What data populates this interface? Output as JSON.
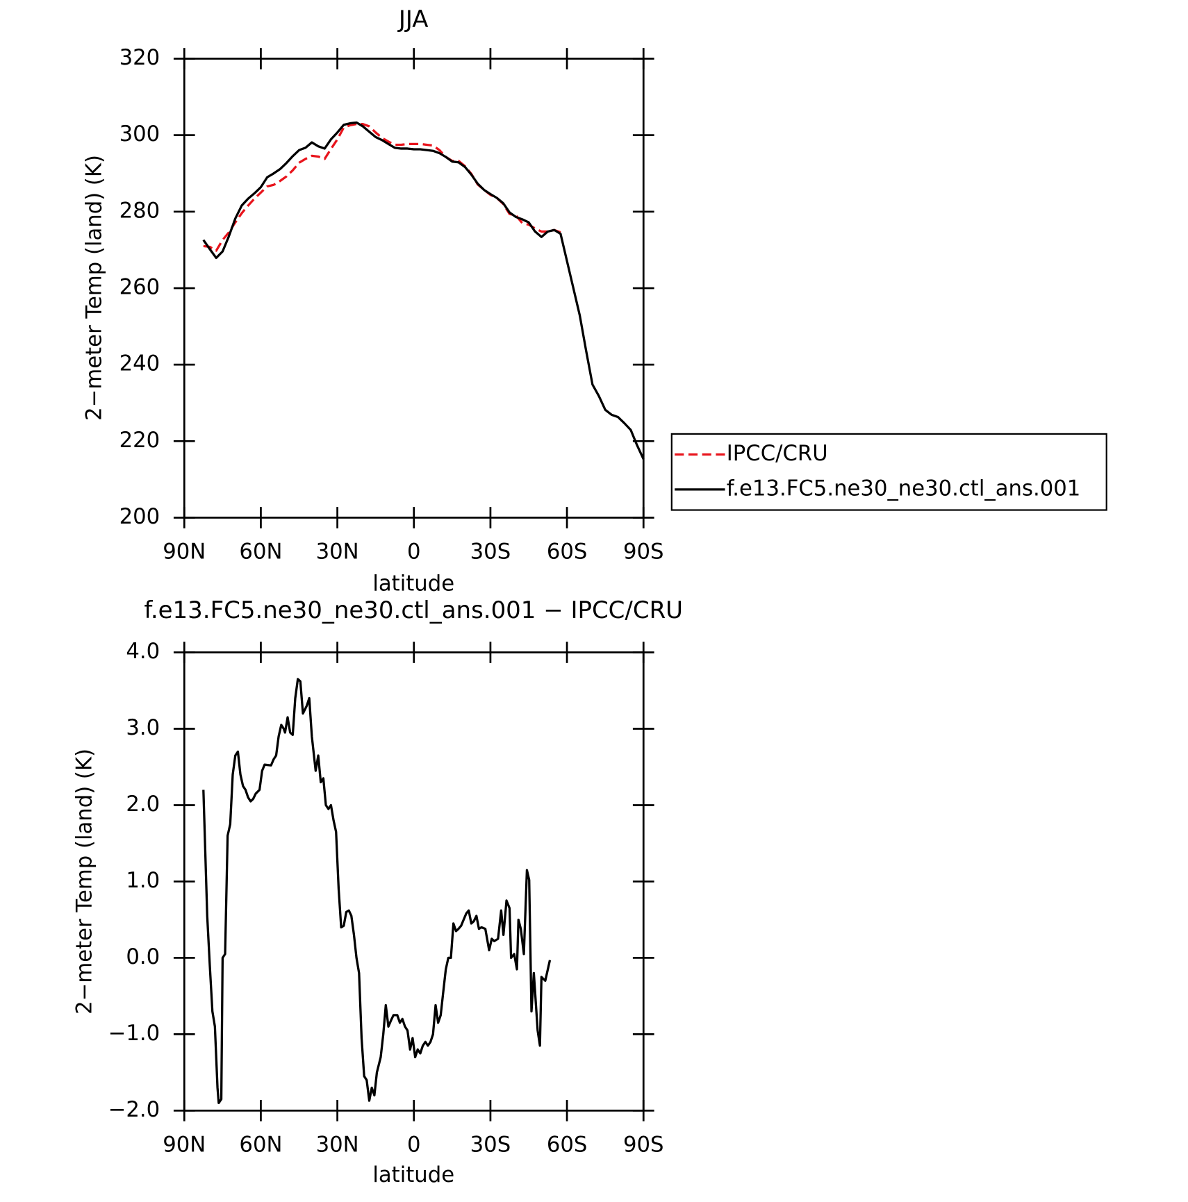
{
  "chart_data": [
    {
      "type": "line",
      "title": "JJA",
      "xlabel": "latitude",
      "ylabel": "2−meter Temp (land) (K)",
      "xlim": [
        90,
        -90
      ],
      "xticks": [
        {
          "value": 90,
          "label": "90N"
        },
        {
          "value": 60,
          "label": "60N"
        },
        {
          "value": 30,
          "label": "30N"
        },
        0,
        {
          "value": -30,
          "label": "30S"
        },
        {
          "value": -60,
          "label": "60S"
        },
        {
          "value": -90,
          "label": "90S"
        }
      ],
      "ylim": [
        200,
        320
      ],
      "yticks": [
        200,
        220,
        240,
        260,
        280,
        300,
        320
      ],
      "x": [
        82.5,
        80,
        77.5,
        75,
        72.5,
        70,
        67.5,
        65,
        62.5,
        60,
        57.5,
        55,
        52.5,
        50,
        47.5,
        45,
        42.5,
        40,
        37.5,
        35,
        32.5,
        30,
        27.5,
        25,
        22.5,
        20,
        17.5,
        15,
        12.5,
        10,
        7.5,
        5,
        2.5,
        0,
        -2.5,
        -5,
        -7.5,
        -10,
        -12.5,
        -15,
        -17.5,
        -20,
        -22.5,
        -25,
        -27.5,
        -30,
        -32.5,
        -35,
        -37.5,
        -40,
        -42.5,
        -45,
        -47.5,
        -50,
        -52.5,
        -55,
        -57.5,
        -65,
        -67.5,
        -70,
        -72.5,
        -75,
        -77.5,
        -80,
        -82.5,
        -85,
        -87.5,
        -90
      ],
      "series": [
        {
          "name": "IPCC/CRU",
          "color": "#e8141c",
          "dash": true,
          "values": [
            271.0,
            270.8,
            269.8,
            272.6,
            274.6,
            277.2,
            279.6,
            281.6,
            283.4,
            285.0,
            286.6,
            287.0,
            288.0,
            289.2,
            290.8,
            292.8,
            293.8,
            294.6,
            294.4,
            293.8,
            296.4,
            298.9,
            302.0,
            302.6,
            302.9,
            302.9,
            302.3,
            300.7,
            299.3,
            298.3,
            297.5,
            297.5,
            297.7,
            297.7,
            297.7,
            297.5,
            297.3,
            296.1,
            294.3,
            293.3,
            293.3,
            291.9,
            289.9,
            287.1,
            285.7,
            284.4,
            283.6,
            282.0,
            279.4,
            279.0,
            277.0,
            276.6,
            275.6,
            274.8,
            274.8,
            275.2,
            274.6,
            null,
            null,
            null,
            null,
            null,
            null,
            null,
            null,
            null,
            null,
            null
          ]
        },
        {
          "name": "f.e13.FC5.ne30_ne30.ctl_ans.001",
          "color": "#000000",
          "dash": false,
          "values": [
            272.6,
            270.2,
            267.9,
            269.6,
            273.6,
            278.2,
            281.6,
            283.4,
            284.8,
            286.4,
            289.0,
            290.0,
            291.1,
            292.7,
            294.5,
            296.1,
            296.7,
            298.1,
            297.1,
            296.5,
            298.9,
            300.7,
            302.7,
            303.1,
            303.3,
            302.3,
            300.9,
            299.5,
            298.7,
            297.7,
            296.7,
            296.5,
            296.5,
            296.3,
            296.3,
            296.1,
            295.9,
            295.3,
            294.3,
            293.1,
            292.9,
            291.7,
            289.7,
            287.3,
            285.7,
            284.6,
            283.6,
            282.2,
            279.8,
            278.6,
            278.0,
            277.2,
            274.8,
            273.4,
            274.8,
            275.2,
            274.2,
            252.9,
            243.7,
            234.8,
            231.8,
            228.2,
            226.9,
            226.3,
            224.7,
            222.9,
            218.9,
            215.3
          ]
        }
      ]
    },
    {
      "type": "line",
      "title": "f.e13.FC5.ne30_ne30.ctl_ans.001 − IPCC/CRU",
      "xlabel": "latitude",
      "ylabel": "2−meter Temp (land) (K)",
      "xlim": [
        90,
        -90
      ],
      "xticks": [
        {
          "value": 90,
          "label": "90N"
        },
        {
          "value": 60,
          "label": "60N"
        },
        {
          "value": 30,
          "label": "30N"
        },
        0,
        {
          "value": -30,
          "label": "30S"
        },
        {
          "value": -60,
          "label": "60S"
        },
        {
          "value": -90,
          "label": "90S"
        }
      ],
      "ylim": [
        -2,
        4
      ],
      "yticks": [
        {
          "value": -2,
          "label": "−2.0"
        },
        {
          "value": -1,
          "label": "−1.0"
        },
        {
          "value": 0,
          "label": "0.0"
        },
        {
          "value": 1,
          "label": "1.0"
        },
        {
          "value": 2,
          "label": "2.0"
        },
        {
          "value": 3,
          "label": "3.0"
        },
        {
          "value": 4,
          "label": "4.0"
        }
      ],
      "color": "#000000",
      "x": [
        82.5,
        81,
        80,
        79,
        78,
        77,
        76.5,
        75.5,
        75,
        74,
        73,
        72,
        71,
        70,
        69,
        68,
        67,
        66,
        65,
        64,
        63,
        62,
        60.5,
        59.5,
        58.5,
        56,
        55,
        54,
        53,
        52,
        51,
        50.5,
        49.5,
        48.5,
        47.5,
        46.5,
        45.5,
        44.5,
        43.5,
        42,
        41,
        40,
        38.5,
        37.5,
        36.5,
        35.5,
        34.5,
        33.5,
        32.5,
        31.5,
        30.5,
        29.5,
        28.5,
        27.5,
        26.5,
        25.5,
        24.5,
        23.5,
        22.5,
        21.5,
        20.5,
        19.5,
        18.5,
        17.5,
        16.5,
        15.5,
        14.5,
        13,
        12,
        11,
        10,
        9,
        8,
        6.5,
        5.5,
        4.5,
        3.5,
        2.5,
        1.5,
        0.5,
        -0.5,
        -1.5,
        -2.5,
        -3.5,
        -4.5,
        -5.5,
        -6.5,
        -7.5,
        -8.5,
        -9.5,
        -10.5,
        -11.5,
        -12.5,
        -13.5,
        -14.5,
        -15.5,
        -16.5,
        -17.5,
        -18.5,
        -19.5,
        -20.5,
        -21.5,
        -22.5,
        -23.5,
        -24.5,
        -25.5,
        -26.5,
        -28,
        -29.5,
        -30.5,
        -31.5,
        -33,
        -34.2,
        -35.1,
        -36.3,
        -37.5,
        -38.1,
        -39.3,
        -40.4,
        -41,
        -41.9,
        -43.1,
        -44.3,
        -45.2,
        -46.1,
        -47,
        -48.5,
        -49.4,
        -50,
        -51.5,
        -53.3
      ],
      "values": [
        2.2,
        0.55,
        -0.1,
        -0.7,
        -0.9,
        -1.7,
        -1.9,
        -1.85,
        0.0,
        0.05,
        1.6,
        1.75,
        2.4,
        2.65,
        2.7,
        2.4,
        2.25,
        2.2,
        2.1,
        2.05,
        2.08,
        2.15,
        2.2,
        2.45,
        2.53,
        2.52,
        2.6,
        2.65,
        2.9,
        3.05,
        3.0,
        2.95,
        3.15,
        2.95,
        2.92,
        3.4,
        3.65,
        3.62,
        3.2,
        3.3,
        3.4,
        2.9,
        2.45,
        2.65,
        2.3,
        2.35,
        2.0,
        1.95,
        2.0,
        1.8,
        1.65,
        0.9,
        0.4,
        0.42,
        0.6,
        0.62,
        0.55,
        0.3,
        0.0,
        -0.2,
        -1.05,
        -1.55,
        -1.6,
        -1.87,
        -1.7,
        -1.8,
        -1.5,
        -1.3,
        -1.0,
        -0.62,
        -0.9,
        -0.82,
        -0.75,
        -0.75,
        -0.85,
        -0.8,
        -0.9,
        -0.95,
        -1.2,
        -1.05,
        -1.3,
        -1.2,
        -1.25,
        -1.15,
        -1.1,
        -1.15,
        -1.1,
        -1.0,
        -0.62,
        -0.85,
        -0.75,
        -0.45,
        -0.15,
        0.0,
        0.0,
        0.45,
        0.35,
        0.38,
        0.42,
        0.5,
        0.58,
        0.62,
        0.45,
        0.48,
        0.55,
        0.38,
        0.4,
        0.38,
        0.1,
        0.25,
        0.22,
        0.25,
        0.62,
        0.3,
        0.75,
        0.65,
        0.0,
        0.05,
        -0.15,
        0.5,
        0.38,
        0.05,
        1.15,
        1.02,
        -0.7,
        -0.2,
        -0.95,
        -1.15,
        -0.25,
        -0.3,
        -0.03
      ]
    }
  ]
}
